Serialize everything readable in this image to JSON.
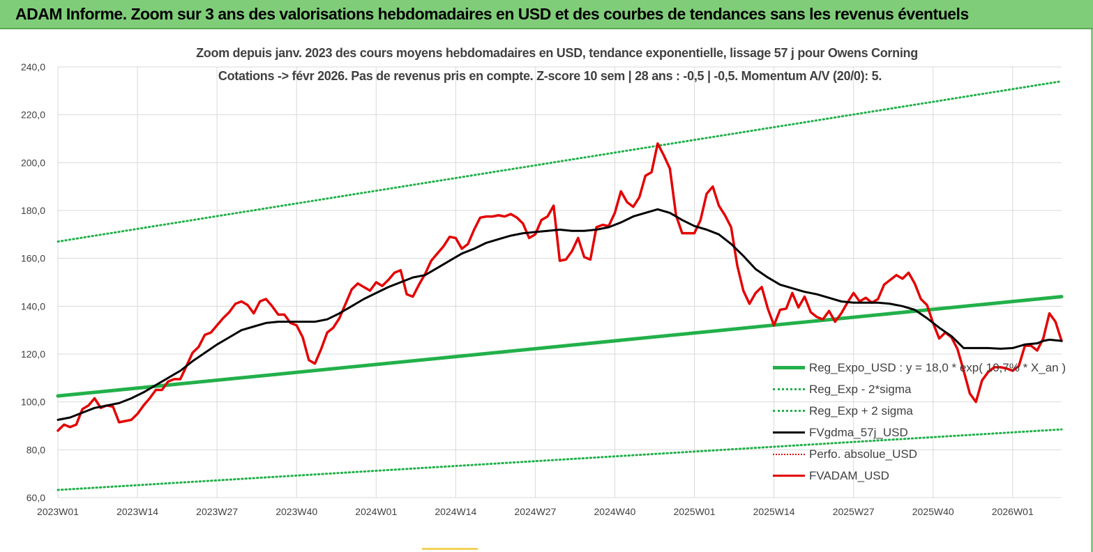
{
  "banner": {
    "title": "ADAM Informe. Zoom sur 3 ans des valorisations hebdomadaires en USD et des courbes de tendances sans les revenus éventuels"
  },
  "colors": {
    "banner": "#7fcd79",
    "trend": "#22b04a",
    "band": "#22b04a",
    "moving_average": "#000000",
    "perfo": "#e00000",
    "price": "#e30000",
    "grid": "#d9d9d9",
    "text": "#404040"
  },
  "chart_data": {
    "type": "line",
    "title": "Zoom depuis janv. 2023 des cours moyens hebdomadaires en USD, tendance exponentielle, lissage 57 j pour Owens Corning",
    "subtitle": "Cotations -> févr 2026.  Pas de revenus pris en compte. Z-score 10 sem | 28 ans : -0,5 | -0,5. Momentum A/V (20/0): 5.",
    "x_unit": "weeks since 2023W01",
    "x_range": [
      0,
      164
    ],
    "x_ticks": [
      {
        "week": 0,
        "label": "2023W01"
      },
      {
        "week": 13,
        "label": "2023W14"
      },
      {
        "week": 26,
        "label": "2023W27"
      },
      {
        "week": 39,
        "label": "2023W40"
      },
      {
        "week": 52,
        "label": "2024W01"
      },
      {
        "week": 65,
        "label": "2024W14"
      },
      {
        "week": 78,
        "label": "2024W27"
      },
      {
        "week": 91,
        "label": "2024W40"
      },
      {
        "week": 104,
        "label": "2025W01"
      },
      {
        "week": 117,
        "label": "2025W14"
      },
      {
        "week": 130,
        "label": "2025W27"
      },
      {
        "week": 143,
        "label": "2025W40"
      },
      {
        "week": 156,
        "label": "2026W01"
      }
    ],
    "ylim": [
      60,
      240
    ],
    "y_ticks": [
      "60,0",
      "80,0",
      "100,0",
      "120,0",
      "140,0",
      "160,0",
      "180,0",
      "200,0",
      "220,0",
      "240,0"
    ],
    "y_tick_values": [
      60,
      80,
      100,
      120,
      140,
      160,
      180,
      200,
      220,
      240
    ],
    "grid": true,
    "legend_position": "bottom-right",
    "series": [
      {
        "name": "Reg_Expo_USD : y = 18,0 * exp( 10,7% * X_an )",
        "style": "thick-solid",
        "points": [
          [
            0,
            102.5
          ],
          [
            164,
            144
          ]
        ]
      },
      {
        "name": "Reg_Exp - 2*sigma",
        "style": "dotted",
        "points": [
          [
            0,
            63.2
          ],
          [
            164,
            88.5
          ]
        ]
      },
      {
        "name": "Reg_Exp + 2 sigma",
        "style": "dotted",
        "points": [
          [
            0,
            167
          ],
          [
            164,
            234
          ]
        ]
      },
      {
        "name": "FVgdma_57j_USD",
        "style": "solid",
        "points": [
          [
            0,
            92.5
          ],
          [
            2,
            93.5
          ],
          [
            4,
            95.5
          ],
          [
            6,
            97.5
          ],
          [
            8,
            98.5
          ],
          [
            10,
            99.5
          ],
          [
            12,
            101.5
          ],
          [
            14,
            104
          ],
          [
            16,
            107
          ],
          [
            18,
            110
          ],
          [
            20,
            113
          ],
          [
            22,
            117
          ],
          [
            24,
            120.5
          ],
          [
            26,
            124
          ],
          [
            28,
            127
          ],
          [
            30,
            130
          ],
          [
            32,
            131.5
          ],
          [
            34,
            133
          ],
          [
            36,
            133.5
          ],
          [
            38,
            133.5
          ],
          [
            40,
            133.5
          ],
          [
            42,
            133.5
          ],
          [
            44,
            134.5
          ],
          [
            46,
            137
          ],
          [
            48,
            140
          ],
          [
            50,
            143
          ],
          [
            52,
            145.5
          ],
          [
            54,
            148
          ],
          [
            56,
            150
          ],
          [
            58,
            152
          ],
          [
            60,
            153
          ],
          [
            62,
            156
          ],
          [
            64,
            159
          ],
          [
            66,
            162
          ],
          [
            68,
            164
          ],
          [
            70,
            166.5
          ],
          [
            72,
            168
          ],
          [
            74,
            169.5
          ],
          [
            76,
            170.5
          ],
          [
            78,
            171
          ],
          [
            80,
            171.5
          ],
          [
            82,
            172
          ],
          [
            84,
            171.5
          ],
          [
            86,
            171.5
          ],
          [
            88,
            172
          ],
          [
            90,
            173
          ],
          [
            92,
            175
          ],
          [
            94,
            177.5
          ],
          [
            96,
            179
          ],
          [
            98,
            180.5
          ],
          [
            100,
            179
          ],
          [
            102,
            176
          ],
          [
            104,
            173.5
          ],
          [
            106,
            172
          ],
          [
            108,
            170
          ],
          [
            110,
            166
          ],
          [
            112,
            161
          ],
          [
            114,
            155.5
          ],
          [
            116,
            152
          ],
          [
            118,
            149
          ],
          [
            120,
            147.5
          ],
          [
            122,
            146
          ],
          [
            124,
            145
          ],
          [
            126,
            143.5
          ],
          [
            128,
            142
          ],
          [
            130,
            141.5
          ],
          [
            132,
            141.5
          ],
          [
            134,
            141.5
          ],
          [
            136,
            141
          ],
          [
            138,
            140
          ],
          [
            140,
            138.5
          ],
          [
            142,
            135
          ],
          [
            144,
            131
          ],
          [
            146,
            127.5
          ],
          [
            148,
            122.5
          ],
          [
            150,
            122.5
          ],
          [
            152,
            122.5
          ],
          [
            154,
            122.2
          ],
          [
            156,
            122.5
          ],
          [
            158,
            124
          ],
          [
            160,
            124.5
          ],
          [
            161,
            125.5
          ],
          [
            162,
            126
          ],
          [
            164,
            125.5
          ]
        ]
      },
      {
        "name": "Perfo. absolue_USD",
        "style": "dotted",
        "points": []
      },
      {
        "name": "FVADAM_USD",
        "style": "thick-solid",
        "points": [
          [
            0,
            88
          ],
          [
            1,
            90.5
          ],
          [
            2,
            89.5
          ],
          [
            3,
            90.5
          ],
          [
            4,
            97
          ],
          [
            5,
            98.5
          ],
          [
            6,
            101.5
          ],
          [
            7,
            97.5
          ],
          [
            8,
            98.5
          ],
          [
            9,
            98
          ],
          [
            10,
            91.5
          ],
          [
            11,
            92
          ],
          [
            12,
            92.5
          ],
          [
            13,
            95
          ],
          [
            14,
            98.5
          ],
          [
            15,
            101.5
          ],
          [
            16,
            105
          ],
          [
            17,
            105
          ],
          [
            18,
            108.5
          ],
          [
            19,
            109.5
          ],
          [
            20,
            109.5
          ],
          [
            21,
            115
          ],
          [
            22,
            120.5
          ],
          [
            23,
            123
          ],
          [
            24,
            128
          ],
          [
            25,
            129
          ],
          [
            26,
            132
          ],
          [
            27,
            135
          ],
          [
            28,
            137.5
          ],
          [
            29,
            141
          ],
          [
            30,
            142
          ],
          [
            31,
            140.5
          ],
          [
            32,
            137
          ],
          [
            33,
            142
          ],
          [
            34,
            143
          ],
          [
            35,
            140
          ],
          [
            36,
            136.5
          ],
          [
            37,
            136.5
          ],
          [
            38,
            133
          ],
          [
            39,
            132
          ],
          [
            40,
            127
          ],
          [
            41,
            117.5
          ],
          [
            42,
            116
          ],
          [
            43,
            122
          ],
          [
            44,
            129
          ],
          [
            45,
            131
          ],
          [
            46,
            135
          ],
          [
            47,
            141
          ],
          [
            48,
            147
          ],
          [
            49,
            149.5
          ],
          [
            50,
            148
          ],
          [
            51,
            146.5
          ],
          [
            52,
            150
          ],
          [
            53,
            148.5
          ],
          [
            54,
            151
          ],
          [
            55,
            154
          ],
          [
            56,
            155
          ],
          [
            57,
            145
          ],
          [
            58,
            144
          ],
          [
            59,
            149
          ],
          [
            60,
            153.5
          ],
          [
            61,
            159
          ],
          [
            62,
            162
          ],
          [
            63,
            165
          ],
          [
            64,
            169
          ],
          [
            65,
            168.5
          ],
          [
            66,
            164
          ],
          [
            67,
            166
          ],
          [
            68,
            172
          ],
          [
            69,
            177
          ],
          [
            70,
            177.5
          ],
          [
            71,
            177.5
          ],
          [
            72,
            178
          ],
          [
            73,
            177.5
          ],
          [
            74,
            178.5
          ],
          [
            75,
            177
          ],
          [
            76,
            174.5
          ],
          [
            77,
            168.5
          ],
          [
            78,
            170
          ],
          [
            79,
            176
          ],
          [
            80,
            177.5
          ],
          [
            81,
            182
          ],
          [
            82,
            159
          ],
          [
            83,
            159.5
          ],
          [
            84,
            163
          ],
          [
            85,
            168.5
          ],
          [
            86,
            160.5
          ],
          [
            87,
            159.5
          ],
          [
            88,
            173
          ],
          [
            89,
            174
          ],
          [
            90,
            173.5
          ],
          [
            91,
            179
          ],
          [
            92,
            188
          ],
          [
            93,
            183.5
          ],
          [
            94,
            181.5
          ],
          [
            95,
            185.5
          ],
          [
            96,
            194.5
          ],
          [
            97,
            196
          ],
          [
            98,
            208
          ],
          [
            99,
            203
          ],
          [
            100,
            197.5
          ],
          [
            101,
            178
          ],
          [
            102,
            170.5
          ],
          [
            103,
            170.5
          ],
          [
            104,
            170.5
          ],
          [
            105,
            176
          ],
          [
            106,
            187
          ],
          [
            107,
            190
          ],
          [
            108,
            182
          ],
          [
            109,
            178
          ],
          [
            110,
            173
          ],
          [
            111,
            157
          ],
          [
            112,
            146.5
          ],
          [
            113,
            141
          ],
          [
            114,
            145.5
          ],
          [
            115,
            148
          ],
          [
            116,
            139
          ],
          [
            117,
            132
          ],
          [
            118,
            138.5
          ],
          [
            119,
            139
          ],
          [
            120,
            145.5
          ],
          [
            121,
            139.5
          ],
          [
            122,
            144
          ],
          [
            123,
            137.5
          ],
          [
            124,
            135.5
          ],
          [
            125,
            134.5
          ],
          [
            126,
            138
          ],
          [
            127,
            133.5
          ],
          [
            128,
            137
          ],
          [
            129,
            141.5
          ],
          [
            130,
            145.5
          ],
          [
            131,
            142
          ],
          [
            132,
            143.5
          ],
          [
            133,
            141.5
          ],
          [
            134,
            143
          ],
          [
            135,
            149
          ],
          [
            136,
            151
          ],
          [
            137,
            153
          ],
          [
            138,
            151.5
          ],
          [
            139,
            154
          ],
          [
            140,
            149.5
          ],
          [
            141,
            143
          ],
          [
            142,
            140.5
          ],
          [
            143,
            133
          ],
          [
            144,
            126.5
          ],
          [
            145,
            129
          ],
          [
            146,
            127
          ],
          [
            147,
            122
          ],
          [
            148,
            113
          ],
          [
            149,
            103.5
          ],
          [
            150,
            100
          ],
          [
            151,
            109
          ],
          [
            152,
            112.5
          ],
          [
            153,
            114.5
          ],
          [
            154,
            114.5
          ],
          [
            155,
            114
          ],
          [
            156,
            113
          ],
          [
            157,
            115
          ],
          [
            158,
            123.5
          ],
          [
            159,
            123.5
          ],
          [
            160,
            121.5
          ],
          [
            161,
            126.5
          ],
          [
            162,
            137
          ],
          [
            163,
            133.5
          ],
          [
            164,
            125.5
          ]
        ]
      }
    ]
  }
}
